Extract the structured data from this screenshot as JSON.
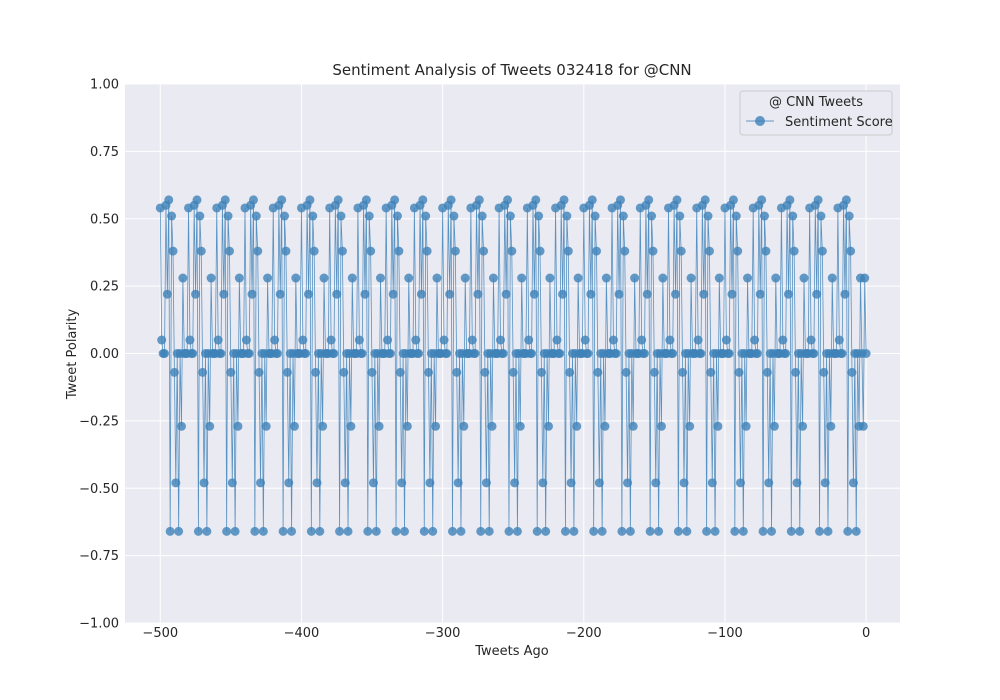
{
  "chart_data": {
    "type": "line",
    "title": "Sentiment Analysis of Tweets 032418 for @CNN",
    "xlabel": "Tweets Ago",
    "ylabel": "Tweet Polarity",
    "xlim": [
      -525,
      24
    ],
    "ylim": [
      -1.0,
      1.0
    ],
    "xticks": [
      -500,
      -400,
      -300,
      -200,
      -100,
      0
    ],
    "xtick_labels": [
      "−500",
      "−400",
      "−300",
      "−200",
      "−100",
      "0"
    ],
    "yticks": [
      -1.0,
      -0.75,
      -0.5,
      -0.25,
      0.0,
      0.25,
      0.5,
      0.75,
      1.0
    ],
    "ytick_labels": [
      "−1.00",
      "−0.75",
      "−0.50",
      "−0.25",
      "0.00",
      "0.25",
      "0.50",
      "0.75",
      "1.00"
    ],
    "grid": true,
    "legend": {
      "title": "@ CNN Tweets",
      "position": "top-right"
    },
    "series": [
      {
        "name": "Sentiment Score",
        "color": "#3e82b8",
        "x_start": -500,
        "x_end": 0,
        "pattern_period": 20,
        "pattern": [
          0.54,
          0.05,
          0.0,
          0.0,
          0.55,
          0.22,
          0.57,
          -0.66,
          0.51,
          0.38,
          -0.07,
          -0.48,
          0.0,
          -0.66,
          0.0,
          -0.27,
          0.28,
          0.0,
          0.0,
          0.0
        ],
        "tail": [
          0.0,
          -0.27,
          0.28,
          0.0
        ]
      }
    ]
  }
}
